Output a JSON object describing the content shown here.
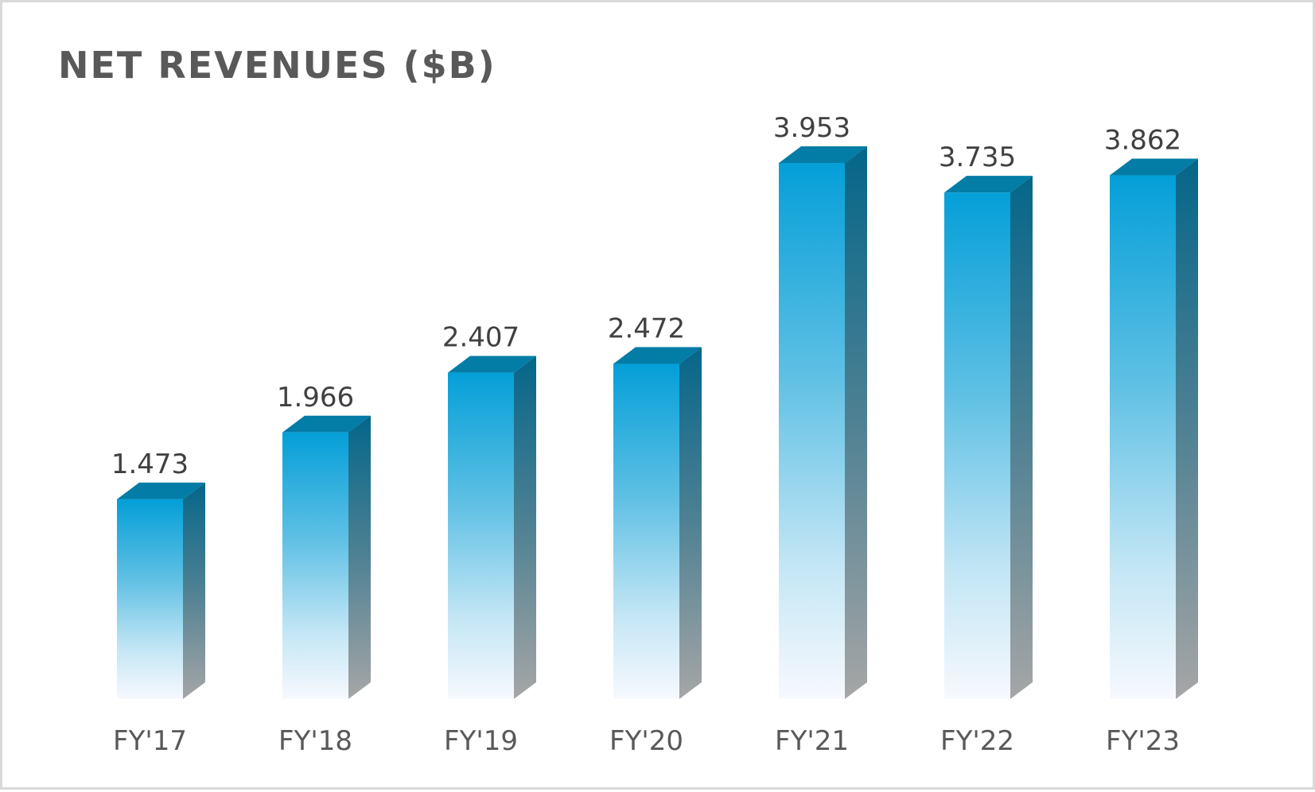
{
  "chart_data": {
    "type": "bar",
    "title": "NET REVENUES ($B)",
    "categories": [
      "FY'17",
      "FY'18",
      "FY'19",
      "FY'20",
      "FY'21",
      "FY'22",
      "FY'23"
    ],
    "values": [
      1.473,
      1.966,
      2.407,
      2.472,
      3.953,
      3.735,
      3.862
    ],
    "value_labels": [
      "1.473",
      "1.966",
      "2.407",
      "2.472",
      "3.953",
      "3.735",
      "3.862"
    ],
    "xlabel": "",
    "ylabel": "",
    "ylim": [
      0,
      4.5
    ],
    "grid": false,
    "legend": "none",
    "style": "3d-column",
    "colors": {
      "front_top": "#049fd8",
      "front_bottom": "#f7f9fe",
      "side_top": "#046689",
      "side_bottom": "#a6a6a6",
      "top_face": "#037ca6"
    }
  }
}
